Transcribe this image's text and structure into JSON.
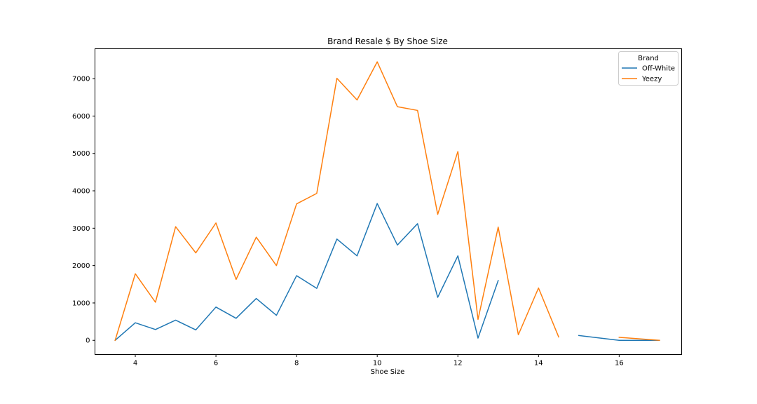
{
  "chart_data": {
    "type": "line",
    "title": "Brand Resale $ By Shoe Size",
    "xlabel": "Shoe Size",
    "ylabel": "",
    "xlim": [
      3.0,
      17.55
    ],
    "ylim": [
      -380,
      7800
    ],
    "xticks": [
      4,
      6,
      8,
      10,
      12,
      14,
      16
    ],
    "yticks": [
      0,
      1000,
      2000,
      3000,
      4000,
      5000,
      6000,
      7000
    ],
    "grid": false,
    "legend": {
      "title": "Brand",
      "position": "top-right"
    },
    "series": [
      {
        "name": "Off-White",
        "color": "#1f77b4",
        "points": [
          [
            3.5,
            0
          ],
          [
            4,
            470
          ],
          [
            4.5,
            290
          ],
          [
            5,
            540
          ],
          [
            5.5,
            280
          ],
          [
            6,
            890
          ],
          [
            6.5,
            590
          ],
          [
            7,
            1120
          ],
          [
            7.5,
            670
          ],
          [
            8,
            1730
          ],
          [
            8.5,
            1390
          ],
          [
            9,
            2710
          ],
          [
            9.5,
            2260
          ],
          [
            10,
            3660
          ],
          [
            10.5,
            2550
          ],
          [
            11,
            3120
          ],
          [
            11.5,
            1150
          ],
          [
            12,
            2260
          ],
          [
            12.5,
            60
          ],
          [
            13,
            1600
          ],
          [
            13.5,
            null
          ],
          [
            15,
            130
          ],
          [
            16,
            0
          ],
          [
            17,
            0
          ]
        ]
      },
      {
        "name": "Yeezy",
        "color": "#ff7f0e",
        "points": [
          [
            3.5,
            0
          ],
          [
            4,
            1780
          ],
          [
            4.5,
            1020
          ],
          [
            5,
            3040
          ],
          [
            5.5,
            2340
          ],
          [
            6,
            3140
          ],
          [
            6.5,
            1630
          ],
          [
            7,
            2760
          ],
          [
            7.5,
            2000
          ],
          [
            8,
            3650
          ],
          [
            8.5,
            3930
          ],
          [
            9,
            7010
          ],
          [
            9.5,
            6430
          ],
          [
            10,
            7450
          ],
          [
            10.5,
            6250
          ],
          [
            11,
            6150
          ],
          [
            11.5,
            3370
          ],
          [
            12,
            5050
          ],
          [
            12.5,
            560
          ],
          [
            13,
            3030
          ],
          [
            13.5,
            150
          ],
          [
            14,
            1400
          ],
          [
            14.5,
            90
          ],
          [
            15,
            null
          ],
          [
            16,
            80
          ],
          [
            17,
            0
          ]
        ]
      }
    ]
  }
}
